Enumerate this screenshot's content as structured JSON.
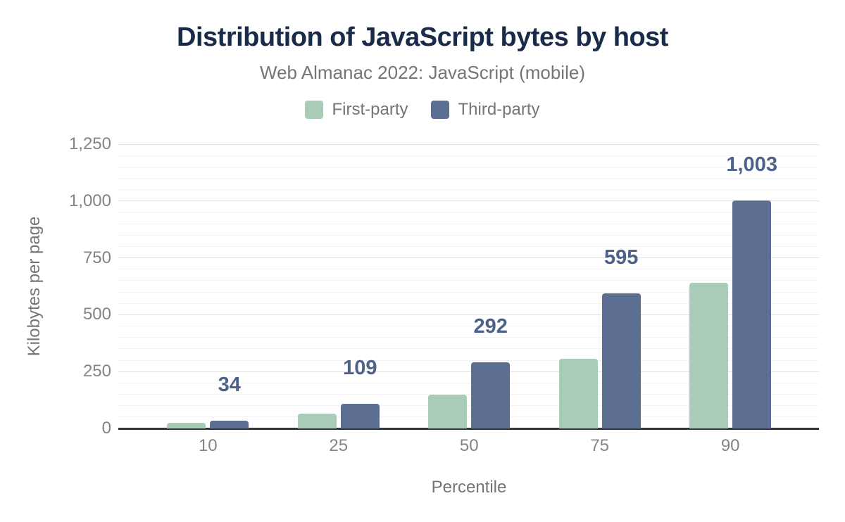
{
  "chart_data": {
    "type": "bar",
    "title": "Distribution of JavaScript bytes by host",
    "subtitle": "Web Almanac 2022: JavaScript (mobile)",
    "xlabel": "Percentile",
    "ylabel": "Kilobytes per page",
    "categories": [
      "10",
      "25",
      "50",
      "75",
      "90"
    ],
    "series": [
      {
        "name": "First-party",
        "color": "#a9ccb9",
        "values": [
          26,
          65,
          150,
          306,
          640
        ]
      },
      {
        "name": "Third-party",
        "color": "#5c6e91",
        "values": [
          34,
          109,
          292,
          595,
          1003
        ],
        "data_labels": [
          "34",
          "109",
          "292",
          "595",
          "1,003"
        ]
      }
    ],
    "ylim": [
      0,
      1250
    ],
    "yticks": [
      {
        "value": 0,
        "label": "0"
      },
      {
        "value": 250,
        "label": "250"
      },
      {
        "value": 500,
        "label": "500"
      },
      {
        "value": 750,
        "label": "750"
      },
      {
        "value": 1000,
        "label": "1,000"
      },
      {
        "value": 1250,
        "label": "1,250"
      }
    ],
    "minor_grid_step": 50,
    "grid": true,
    "legend_position": "top",
    "colors": {
      "title": "#1a2b49",
      "text": "#757575",
      "tick": "#848484",
      "data_label": "#4e6289"
    }
  }
}
